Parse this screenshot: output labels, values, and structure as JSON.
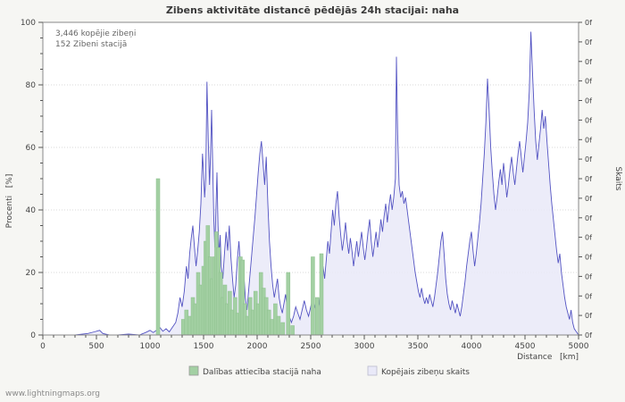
{
  "page": {
    "title": "Zibens aktivitāte distancē pēdējās 24h stacijai: naha",
    "footer": "www.lightningmaps.org"
  },
  "annotations": {
    "total": "3,446 kopējie zibeņi",
    "station": "152 Zibeni stacijā"
  },
  "axes": {
    "left_label": "Procenti   [%]",
    "right_label": "Skaits",
    "x_label": "Distance   [km]",
    "left_ticks": [
      0,
      20,
      40,
      60,
      80,
      100
    ],
    "x_ticks": [
      0,
      500,
      1000,
      1500,
      2000,
      2500,
      3000,
      3500,
      4000,
      4500,
      5000
    ],
    "right_tick_label": "0f",
    "right_tick_count": 17
  },
  "legend": [
    {
      "label": "Dalības attiecība stacijā naha",
      "color": "#a3d0a3"
    },
    {
      "label": "Kopējais zibeņu skaits",
      "color": "#e9e9f8"
    }
  ],
  "colors": {
    "grid": "#d9d9d9",
    "axis": "#555555",
    "plot_border": "#888888",
    "plot_bg": "#ffffff",
    "page_bg": "#f6f6f3"
  },
  "chart_data": {
    "type": "area",
    "title": "Zibens aktivitāte distancē pēdējās 24h stacijai: naha",
    "xlabel": "Distance [km]",
    "ylabel_left": "Procenti [%]",
    "ylabel_right": "Skaits",
    "xlim": [
      0,
      5000
    ],
    "ylim_left": [
      0,
      100
    ],
    "grid": true,
    "legend_position": "bottom",
    "series": [
      {
        "name": "Kopējais zibeņu skaits",
        "type": "area",
        "color": "#5252c2",
        "fill": "#e9e9f8",
        "points": [
          [
            0,
            0
          ],
          [
            150,
            0
          ],
          [
            300,
            0
          ],
          [
            420,
            0.5
          ],
          [
            480,
            1
          ],
          [
            530,
            1.5
          ],
          [
            560,
            0.5
          ],
          [
            620,
            0
          ],
          [
            700,
            0
          ],
          [
            800,
            0.3
          ],
          [
            900,
            0
          ],
          [
            960,
            0.8
          ],
          [
            1000,
            1.5
          ],
          [
            1030,
            0.8
          ],
          [
            1060,
            1.5
          ],
          [
            1090,
            2.5
          ],
          [
            1120,
            1.2
          ],
          [
            1150,
            2
          ],
          [
            1180,
            1
          ],
          [
            1210,
            2.5
          ],
          [
            1240,
            4
          ],
          [
            1260,
            7
          ],
          [
            1280,
            12
          ],
          [
            1300,
            9
          ],
          [
            1320,
            14
          ],
          [
            1340,
            22
          ],
          [
            1355,
            18
          ],
          [
            1370,
            26
          ],
          [
            1385,
            31
          ],
          [
            1400,
            35
          ],
          [
            1415,
            28
          ],
          [
            1430,
            22
          ],
          [
            1445,
            27
          ],
          [
            1460,
            33
          ],
          [
            1475,
            42
          ],
          [
            1490,
            58
          ],
          [
            1500,
            52
          ],
          [
            1510,
            44
          ],
          [
            1520,
            50
          ],
          [
            1532,
            81
          ],
          [
            1544,
            62
          ],
          [
            1556,
            48
          ],
          [
            1565,
            58
          ],
          [
            1575,
            72
          ],
          [
            1585,
            55
          ],
          [
            1595,
            38
          ],
          [
            1605,
            28
          ],
          [
            1615,
            40
          ],
          [
            1625,
            52
          ],
          [
            1635,
            35
          ],
          [
            1645,
            25
          ],
          [
            1655,
            32
          ],
          [
            1665,
            22
          ],
          [
            1680,
            18
          ],
          [
            1695,
            26
          ],
          [
            1710,
            33
          ],
          [
            1725,
            27
          ],
          [
            1740,
            35
          ],
          [
            1755,
            25
          ],
          [
            1770,
            18
          ],
          [
            1785,
            12
          ],
          [
            1800,
            16
          ],
          [
            1815,
            24
          ],
          [
            1830,
            30
          ],
          [
            1845,
            22
          ],
          [
            1860,
            15
          ],
          [
            1875,
            20
          ],
          [
            1890,
            12
          ],
          [
            1905,
            8
          ],
          [
            1920,
            14
          ],
          [
            1935,
            20
          ],
          [
            1950,
            26
          ],
          [
            1965,
            32
          ],
          [
            1980,
            38
          ],
          [
            1995,
            45
          ],
          [
            2010,
            52
          ],
          [
            2025,
            58
          ],
          [
            2040,
            62
          ],
          [
            2055,
            55
          ],
          [
            2070,
            48
          ],
          [
            2085,
            57
          ],
          [
            2100,
            42
          ],
          [
            2115,
            30
          ],
          [
            2130,
            22
          ],
          [
            2145,
            16
          ],
          [
            2160,
            12
          ],
          [
            2175,
            15
          ],
          [
            2190,
            18
          ],
          [
            2205,
            12
          ],
          [
            2220,
            9
          ],
          [
            2235,
            7
          ],
          [
            2250,
            10
          ],
          [
            2265,
            13
          ],
          [
            2280,
            9
          ],
          [
            2300,
            6
          ],
          [
            2320,
            4
          ],
          [
            2340,
            6
          ],
          [
            2360,
            9
          ],
          [
            2380,
            7
          ],
          [
            2400,
            5
          ],
          [
            2420,
            8
          ],
          [
            2440,
            11
          ],
          [
            2460,
            8
          ],
          [
            2480,
            6
          ],
          [
            2500,
            9
          ],
          [
            2520,
            12
          ],
          [
            2540,
            9
          ],
          [
            2560,
            7
          ],
          [
            2580,
            10
          ],
          [
            2600,
            16
          ],
          [
            2615,
            22
          ],
          [
            2630,
            18
          ],
          [
            2645,
            24
          ],
          [
            2660,
            30
          ],
          [
            2675,
            26
          ],
          [
            2690,
            33
          ],
          [
            2705,
            40
          ],
          [
            2720,
            35
          ],
          [
            2735,
            42
          ],
          [
            2750,
            46
          ],
          [
            2765,
            38
          ],
          [
            2780,
            32
          ],
          [
            2795,
            27
          ],
          [
            2810,
            31
          ],
          [
            2825,
            36
          ],
          [
            2840,
            30
          ],
          [
            2855,
            26
          ],
          [
            2870,
            31
          ],
          [
            2885,
            27
          ],
          [
            2900,
            22
          ],
          [
            2915,
            26
          ],
          [
            2930,
            30
          ],
          [
            2945,
            25
          ],
          [
            2960,
            29
          ],
          [
            2975,
            33
          ],
          [
            2990,
            28
          ],
          [
            3005,
            24
          ],
          [
            3020,
            28
          ],
          [
            3035,
            33
          ],
          [
            3050,
            37
          ],
          [
            3065,
            30
          ],
          [
            3080,
            25
          ],
          [
            3095,
            29
          ],
          [
            3110,
            33
          ],
          [
            3125,
            28
          ],
          [
            3140,
            32
          ],
          [
            3155,
            37
          ],
          [
            3170,
            33
          ],
          [
            3185,
            38
          ],
          [
            3200,
            42
          ],
          [
            3215,
            36
          ],
          [
            3230,
            41
          ],
          [
            3245,
            45
          ],
          [
            3260,
            40
          ],
          [
            3275,
            44
          ],
          [
            3290,
            50
          ],
          [
            3300,
            89
          ],
          [
            3312,
            64
          ],
          [
            3325,
            48
          ],
          [
            3340,
            44
          ],
          [
            3355,
            46
          ],
          [
            3370,
            42
          ],
          [
            3385,
            44
          ],
          [
            3400,
            40
          ],
          [
            3415,
            36
          ],
          [
            3430,
            32
          ],
          [
            3445,
            28
          ],
          [
            3460,
            24
          ],
          [
            3475,
            20
          ],
          [
            3490,
            17
          ],
          [
            3505,
            14
          ],
          [
            3520,
            12
          ],
          [
            3535,
            15
          ],
          [
            3550,
            12
          ],
          [
            3565,
            10
          ],
          [
            3580,
            12
          ],
          [
            3595,
            10
          ],
          [
            3610,
            13
          ],
          [
            3625,
            11
          ],
          [
            3640,
            9
          ],
          [
            3655,
            12
          ],
          [
            3670,
            16
          ],
          [
            3685,
            20
          ],
          [
            3700,
            25
          ],
          [
            3715,
            30
          ],
          [
            3730,
            33
          ],
          [
            3745,
            26
          ],
          [
            3760,
            18
          ],
          [
            3775,
            13
          ],
          [
            3790,
            10
          ],
          [
            3805,
            8
          ],
          [
            3820,
            11
          ],
          [
            3835,
            9
          ],
          [
            3850,
            7
          ],
          [
            3865,
            10
          ],
          [
            3880,
            8
          ],
          [
            3895,
            6
          ],
          [
            3910,
            9
          ],
          [
            3925,
            13
          ],
          [
            3940,
            17
          ],
          [
            3955,
            22
          ],
          [
            3970,
            26
          ],
          [
            3985,
            30
          ],
          [
            4000,
            33
          ],
          [
            4015,
            27
          ],
          [
            4030,
            22
          ],
          [
            4045,
            26
          ],
          [
            4060,
            31
          ],
          [
            4075,
            36
          ],
          [
            4090,
            42
          ],
          [
            4105,
            50
          ],
          [
            4120,
            58
          ],
          [
            4135,
            68
          ],
          [
            4150,
            82
          ],
          [
            4165,
            72
          ],
          [
            4180,
            60
          ],
          [
            4195,
            52
          ],
          [
            4210,
            45
          ],
          [
            4225,
            40
          ],
          [
            4240,
            44
          ],
          [
            4255,
            49
          ],
          [
            4270,
            53
          ],
          [
            4285,
            48
          ],
          [
            4300,
            55
          ],
          [
            4315,
            50
          ],
          [
            4330,
            44
          ],
          [
            4345,
            48
          ],
          [
            4360,
            53
          ],
          [
            4375,
            57
          ],
          [
            4390,
            52
          ],
          [
            4405,
            48
          ],
          [
            4420,
            53
          ],
          [
            4435,
            58
          ],
          [
            4450,
            62
          ],
          [
            4465,
            57
          ],
          [
            4480,
            52
          ],
          [
            4495,
            57
          ],
          [
            4510,
            62
          ],
          [
            4525,
            68
          ],
          [
            4540,
            78
          ],
          [
            4555,
            97
          ],
          [
            4570,
            84
          ],
          [
            4585,
            72
          ],
          [
            4600,
            62
          ],
          [
            4615,
            56
          ],
          [
            4630,
            61
          ],
          [
            4645,
            66
          ],
          [
            4660,
            72
          ],
          [
            4675,
            66
          ],
          [
            4690,
            70
          ],
          [
            4705,
            62
          ],
          [
            4720,
            55
          ],
          [
            4735,
            48
          ],
          [
            4750,
            42
          ],
          [
            4765,
            37
          ],
          [
            4780,
            32
          ],
          [
            4795,
            27
          ],
          [
            4810,
            23
          ],
          [
            4825,
            26
          ],
          [
            4840,
            20
          ],
          [
            4855,
            16
          ],
          [
            4870,
            12
          ],
          [
            4885,
            9
          ],
          [
            4900,
            7
          ],
          [
            4915,
            5
          ],
          [
            4930,
            8
          ],
          [
            4945,
            4
          ],
          [
            4960,
            2
          ],
          [
            4980,
            1
          ],
          [
            5000,
            0
          ]
        ]
      },
      {
        "name": "Dalības attiecība stacijā naha",
        "type": "bar",
        "color": "#a3d0a3",
        "edge": "#8cbf8c",
        "points": [
          [
            1075,
            50
          ],
          [
            1310,
            5
          ],
          [
            1340,
            8
          ],
          [
            1370,
            6
          ],
          [
            1400,
            12
          ],
          [
            1425,
            10
          ],
          [
            1450,
            20
          ],
          [
            1475,
            16
          ],
          [
            1500,
            22
          ],
          [
            1520,
            30
          ],
          [
            1540,
            35
          ],
          [
            1560,
            25
          ],
          [
            1580,
            18
          ],
          [
            1600,
            25
          ],
          [
            1620,
            33
          ],
          [
            1640,
            28
          ],
          [
            1660,
            20
          ],
          [
            1680,
            12
          ],
          [
            1700,
            16
          ],
          [
            1720,
            10
          ],
          [
            1745,
            14
          ],
          [
            1770,
            8
          ],
          [
            1795,
            12
          ],
          [
            1820,
            7
          ],
          [
            1845,
            25
          ],
          [
            1865,
            24
          ],
          [
            1885,
            10
          ],
          [
            1910,
            6
          ],
          [
            1935,
            12
          ],
          [
            1960,
            8
          ],
          [
            1985,
            14
          ],
          [
            2010,
            10
          ],
          [
            2035,
            20
          ],
          [
            2060,
            15
          ],
          [
            2085,
            12
          ],
          [
            2110,
            8
          ],
          [
            2140,
            5
          ],
          [
            2170,
            10
          ],
          [
            2200,
            6
          ],
          [
            2240,
            4
          ],
          [
            2290,
            20
          ],
          [
            2330,
            3
          ],
          [
            2520,
            25
          ],
          [
            2560,
            12
          ],
          [
            2600,
            26
          ]
        ]
      }
    ]
  }
}
